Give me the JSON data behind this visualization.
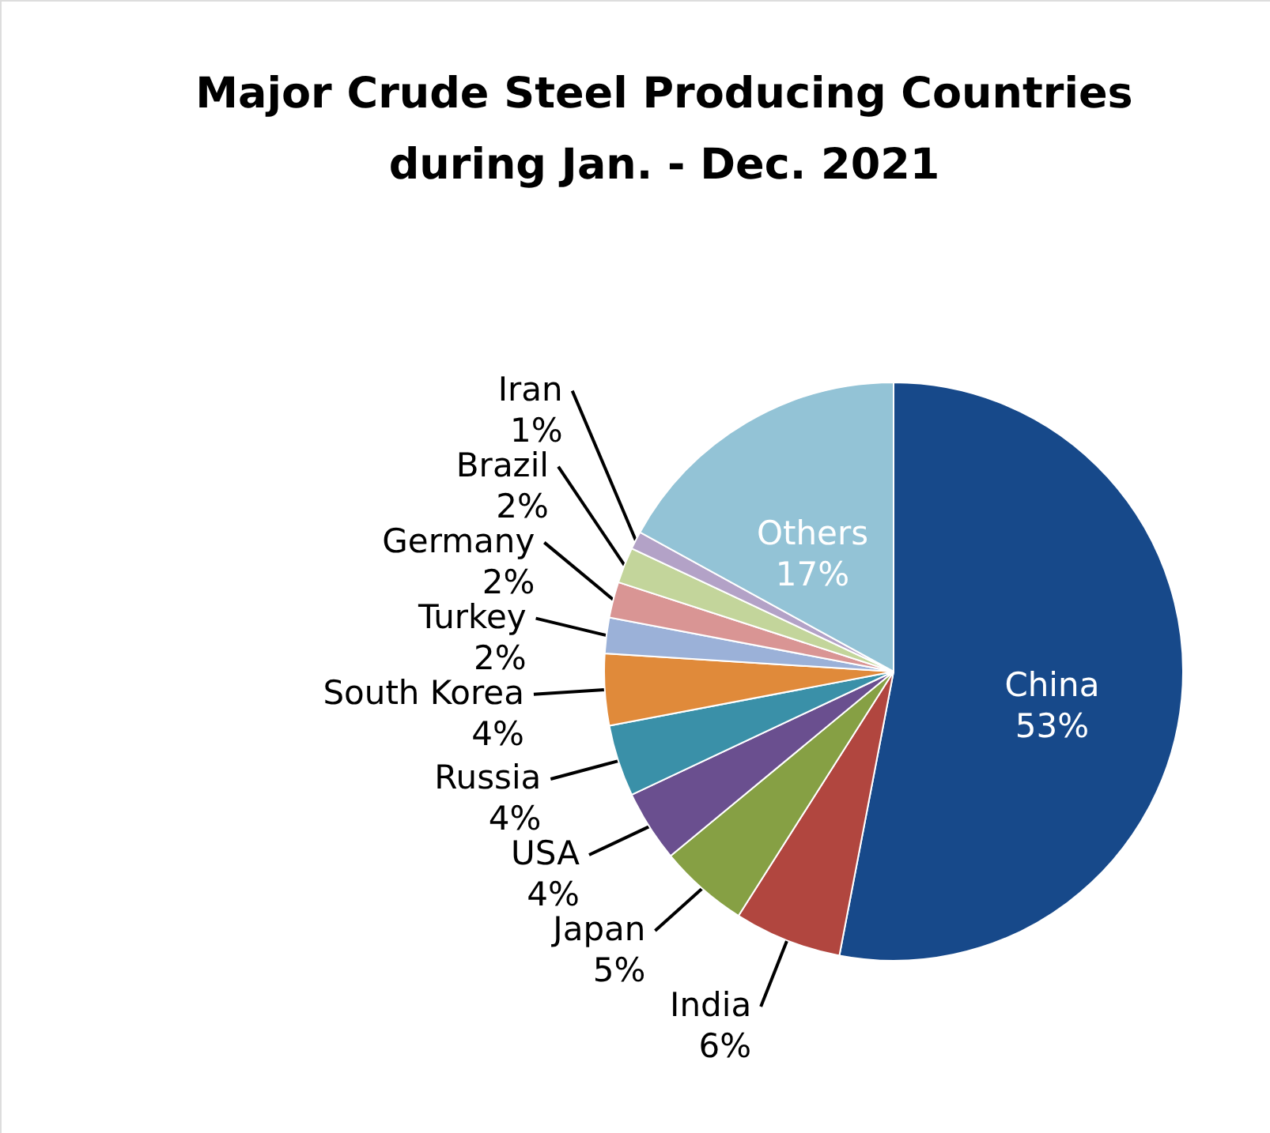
{
  "chart_data": {
    "type": "pie",
    "title": "Major Crude Steel Producing Countries during Jan. - Dec. 2021",
    "categories": [
      "China",
      "India",
      "Japan",
      "USA",
      "Russia",
      "South Korea",
      "Turkey",
      "Germany",
      "Brazil",
      "Iran",
      "Others"
    ],
    "values": [
      53,
      6,
      5,
      4,
      4,
      4,
      2,
      2,
      2,
      1,
      17
    ],
    "value_labels": [
      "53%",
      "6%",
      "5%",
      "4%",
      "4%",
      "4%",
      "2%",
      "2%",
      "2%",
      "1%",
      "17%"
    ],
    "colors": [
      "#17498a",
      "#b1463f",
      "#86a044",
      "#6a4f8f",
      "#3a90a8",
      "#e08a3a",
      "#9bb1d8",
      "#d99594",
      "#c3d59b",
      "#b3a2c7",
      "#93c3d6"
    ]
  }
}
